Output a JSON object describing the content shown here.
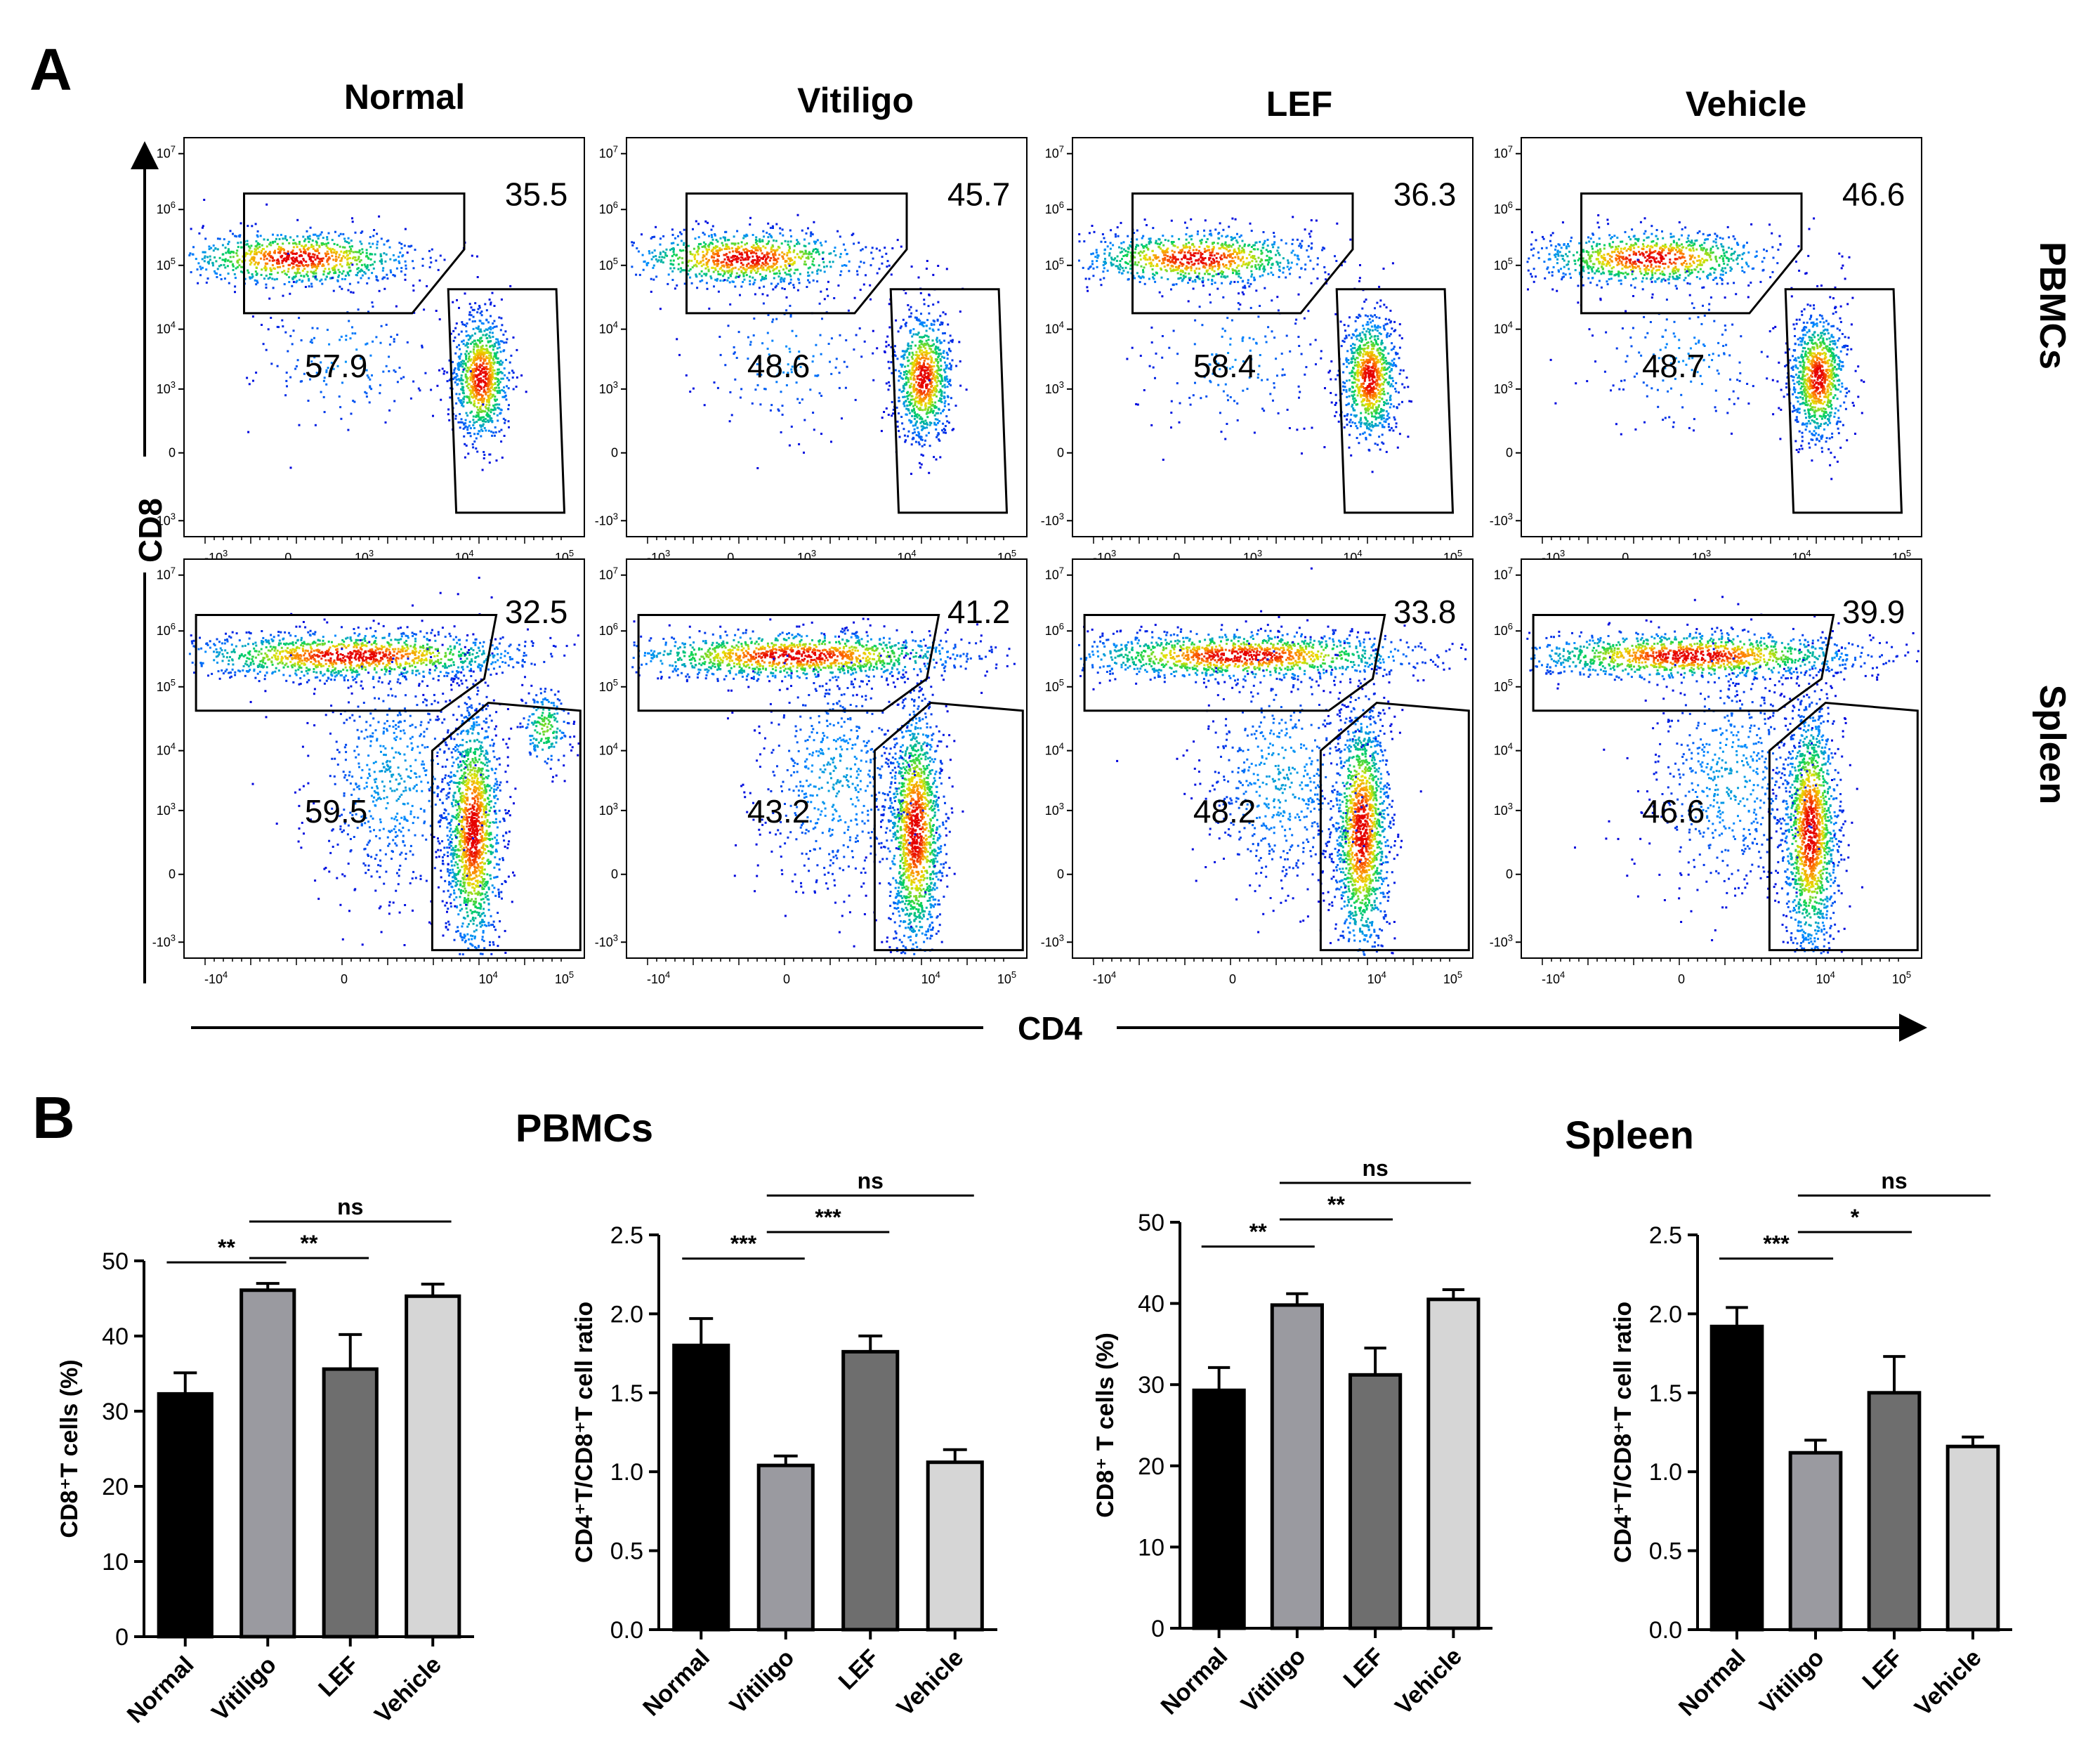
{
  "panel_labels": {
    "a": "A",
    "b": "B"
  },
  "flow": {
    "columns": [
      "Normal",
      "Vitiligo",
      "LEF",
      "Vehicle"
    ],
    "rows": [
      "PBMCs",
      "Spleen"
    ],
    "y_axis_label": "CD8",
    "x_axis_label": "CD4",
    "y_ticks": [
      "10^7",
      "10^6",
      "10^5",
      "10^4",
      "10^3",
      "0",
      "-10^3"
    ],
    "x_ticks_pbmc": [
      "-10^3",
      "0",
      "10^3",
      "10^4",
      "10^5"
    ],
    "x_ticks_spleen": [
      "-10^4",
      "0",
      "10^4",
      "10^5"
    ],
    "gate_values": {
      "PBMCs": {
        "cd8": [
          "35.5",
          "45.7",
          "36.3",
          "46.6"
        ],
        "cd4": [
          "57.9",
          "48.6",
          "58.4",
          "48.7"
        ]
      },
      "Spleen": {
        "cd8": [
          "32.5",
          "41.2",
          "33.8",
          "39.9"
        ],
        "cd4": [
          "59.5",
          "43.2",
          "48.2",
          "46.6"
        ]
      }
    }
  },
  "section_titles": {
    "pbmc": "PBMCs",
    "spleen": "Spleen"
  },
  "colors": {
    "normal": "#000000",
    "vitiligo": "#9a9aa0",
    "lef": "#6e6e6e",
    "vehicle": "#d6d6d6"
  },
  "chart_data": [
    {
      "type": "bar",
      "categories": [
        "Normal",
        "Vitiligo",
        "LEF",
        "Vehicle"
      ],
      "values": [
        32.3,
        46.1,
        35.6,
        45.3
      ],
      "errors": [
        2.8,
        0.9,
        4.6,
        1.6
      ],
      "ylabel": "CD8⁺T cells (%)",
      "ylim": [
        0,
        50
      ],
      "yticks": [
        0,
        10,
        20,
        30,
        40,
        50
      ],
      "significance": [
        {
          "label": "**",
          "from": 0,
          "to": 1,
          "level": 0
        },
        {
          "label": "**",
          "from": 1,
          "to": 2,
          "level": 1
        },
        {
          "label": "ns",
          "from": 1,
          "to": 3,
          "level": 2
        }
      ]
    },
    {
      "type": "bar",
      "categories": [
        "Normal",
        "Vitiligo",
        "LEF",
        "Vehicle"
      ],
      "values": [
        1.8,
        1.04,
        1.76,
        1.06
      ],
      "errors": [
        0.17,
        0.06,
        0.1,
        0.08
      ],
      "ylabel": "CD4⁺T/CD8⁺T cell ratio",
      "ylim": [
        0,
        2.5
      ],
      "yticks": [
        "0.0",
        "0.5",
        "1.0",
        "1.5",
        "2.0",
        "2.5"
      ],
      "significance": [
        {
          "label": "***",
          "from": 0,
          "to": 1,
          "level": 0
        },
        {
          "label": "***",
          "from": 1,
          "to": 2,
          "level": 1
        },
        {
          "label": "ns",
          "from": 1,
          "to": 3,
          "level": 2
        }
      ]
    },
    {
      "type": "bar",
      "categories": [
        "Normal",
        "Vitiligo",
        "LEF",
        "Vehicle"
      ],
      "values": [
        29.3,
        39.8,
        31.2,
        40.5
      ],
      "errors": [
        2.8,
        1.4,
        3.3,
        1.2
      ],
      "ylabel": "CD8⁺ T cells (%)",
      "ylim": [
        0,
        50
      ],
      "yticks": [
        0,
        10,
        20,
        30,
        40,
        50
      ],
      "significance": [
        {
          "label": "**",
          "from": 0,
          "to": 1,
          "level": 0
        },
        {
          "label": "**",
          "from": 1,
          "to": 2,
          "level": 1
        },
        {
          "label": "ns",
          "from": 1,
          "to": 3,
          "level": 2
        }
      ]
    },
    {
      "type": "bar",
      "categories": [
        "Normal",
        "Vitiligo",
        "LEF",
        "Vehicle"
      ],
      "values": [
        1.92,
        1.12,
        1.5,
        1.16
      ],
      "errors": [
        0.12,
        0.08,
        0.23,
        0.06
      ],
      "ylabel": "CD4⁺T/CD8⁺T cell ratio",
      "ylim": [
        0,
        2.5
      ],
      "yticks": [
        "0.0",
        "0.5",
        "1.0",
        "1.5",
        "2.0",
        "2.5"
      ],
      "significance": [
        {
          "label": "***",
          "from": 0,
          "to": 1,
          "level": 0
        },
        {
          "label": "*",
          "from": 1,
          "to": 2,
          "level": 1
        },
        {
          "label": "ns",
          "from": 1,
          "to": 3,
          "level": 2
        }
      ]
    }
  ]
}
